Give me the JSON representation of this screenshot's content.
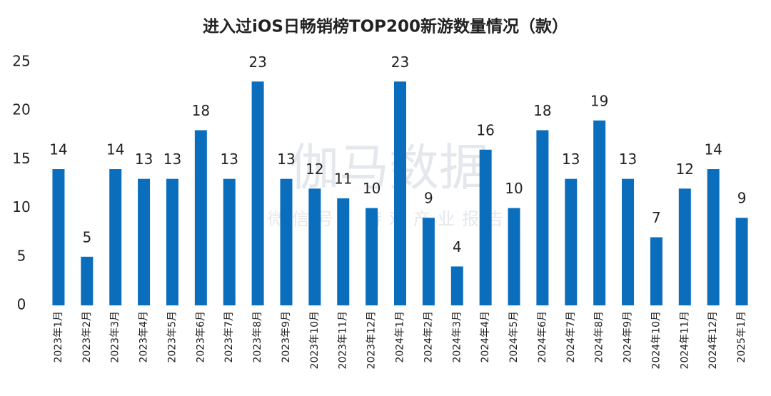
{
  "chart_data": {
    "type": "bar",
    "title": "进入过iOS日畅销榜TOP200新游数量情况（款）",
    "watermark": "伽马数据",
    "watermark_subtitle": "微信号：游戏产业报告",
    "categories": [
      "2023年1月",
      "2023年2月",
      "2023年3月",
      "2023年4月",
      "2023年5月",
      "2023年6月",
      "2023年7月",
      "2023年8月",
      "2023年9月",
      "2023年10月",
      "2023年11月",
      "2023年12月",
      "2024年1月",
      "2024年2月",
      "2024年3月",
      "2024年4月",
      "2024年5月",
      "2024年6月",
      "2024年7月",
      "2024年8月",
      "2024年9月",
      "2024年10月",
      "2024年11月",
      "2024年12月",
      "2025年1月"
    ],
    "values": [
      14,
      5,
      14,
      13,
      13,
      18,
      13,
      23,
      13,
      12,
      11,
      10,
      23,
      9,
      4,
      16,
      10,
      18,
      13,
      19,
      13,
      7,
      12,
      14,
      9
    ],
    "color": "#0a6ebd",
    "ylim": [
      0,
      25
    ],
    "yticks": [
      0,
      5,
      10,
      15,
      20,
      25
    ],
    "grid": false
  }
}
